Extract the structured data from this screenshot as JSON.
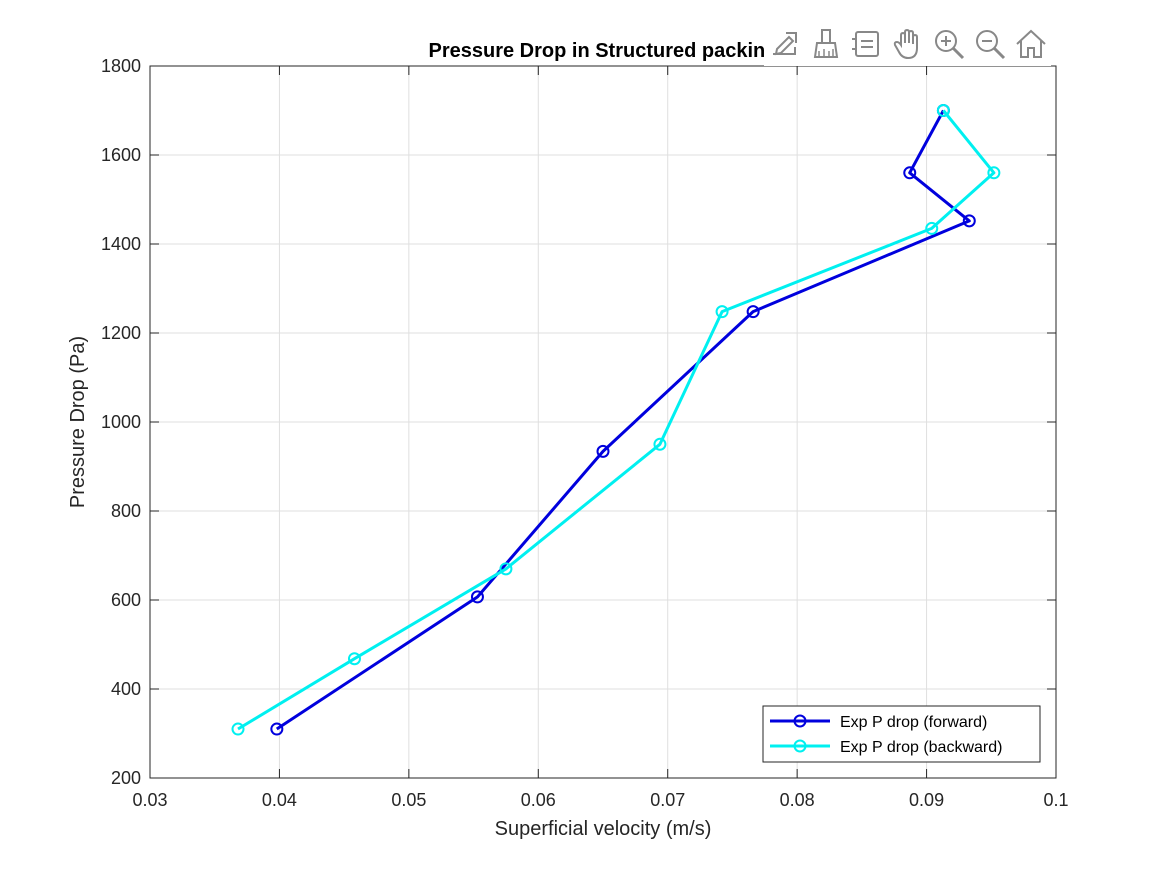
{
  "toolbar": {
    "items": [
      {
        "icon": "export-icon"
      },
      {
        "icon": "brush-icon"
      },
      {
        "icon": "data-tips-icon"
      },
      {
        "icon": "pan-hand-icon"
      },
      {
        "icon": "zoom-in-icon"
      },
      {
        "icon": "zoom-out-icon"
      },
      {
        "icon": "home-icon"
      }
    ]
  },
  "chart_data": {
    "type": "line",
    "title": "Pressure Drop in Structured packing",
    "xlabel": "Superficial velocity (m/s)",
    "ylabel": "Pressure Drop (Pa)",
    "xlim": [
      0.03,
      0.1
    ],
    "ylim": [
      200,
      1800
    ],
    "xticks": [
      0.03,
      0.04,
      0.05,
      0.06,
      0.07,
      0.08,
      0.09,
      0.1
    ],
    "xtick_labels": [
      "0.03",
      "0.04",
      "0.05",
      "0.06",
      "0.07",
      "0.08",
      "0.09",
      "0.1"
    ],
    "yticks": [
      200,
      400,
      600,
      800,
      1000,
      1200,
      1400,
      1600,
      1800
    ],
    "ytick_labels": [
      "200",
      "400",
      "600",
      "800",
      "1000",
      "1200",
      "1400",
      "1600",
      "1800"
    ],
    "grid": true,
    "legend_position": "bottom-right",
    "series": [
      {
        "name": "Exp P drop (forward)",
        "color": "#0000dd",
        "marker": "circle",
        "x": [
          0.0398,
          0.0553,
          0.065,
          0.0766,
          0.0933,
          0.0887,
          0.0913
        ],
        "y": [
          310,
          607,
          934,
          1248,
          1452,
          1560,
          1700
        ]
      },
      {
        "name": "Exp P drop (backward)",
        "color": "#00f0f0",
        "marker": "circle",
        "x": [
          0.0368,
          0.0458,
          0.0575,
          0.0694,
          0.0742,
          0.0904,
          0.0952,
          0.0913
        ],
        "y": [
          310,
          468,
          670,
          950,
          1248,
          1435,
          1560,
          1700
        ]
      }
    ]
  }
}
